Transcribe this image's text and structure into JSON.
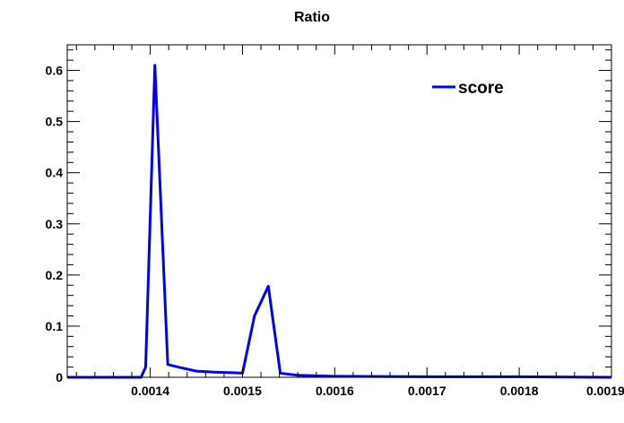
{
  "chart_data": {
    "type": "line",
    "title": "Ratio",
    "xlabel": "",
    "ylabel": "",
    "xlim": [
      0.00131,
      0.0019
    ],
    "ylim": [
      0,
      0.65
    ],
    "x_ticks": [
      0.0014,
      0.0015,
      0.0016,
      0.0017,
      0.0018,
      0.0019
    ],
    "x_tick_labels": [
      "0.0014",
      "0.0015",
      "0.0016",
      "0.0017",
      "0.0018",
      "0.0019"
    ],
    "y_ticks": [
      0,
      0.1,
      0.2,
      0.3,
      0.4,
      0.5,
      0.6
    ],
    "y_tick_labels": [
      "0",
      "0.1",
      "0.2",
      "0.3",
      "0.4",
      "0.5",
      "0.6"
    ],
    "grid": false,
    "legend_position": "top-right",
    "series": [
      {
        "name": "score",
        "color": "#0000ee",
        "x": [
          0.00131,
          0.00139,
          0.001395,
          0.001405,
          0.001419,
          0.00143,
          0.00145,
          0.00147,
          0.00149,
          0.0015,
          0.001513,
          0.001528,
          0.001541,
          0.00156,
          0.0016,
          0.0017,
          0.0018,
          0.0019
        ],
        "y": [
          0,
          0,
          0.02,
          0.61,
          0.025,
          0.02,
          0.012,
          0.01,
          0.009,
          0.008,
          0.12,
          0.178,
          0.008,
          0.004,
          0.002,
          0.001,
          0.001,
          0
        ]
      }
    ]
  }
}
